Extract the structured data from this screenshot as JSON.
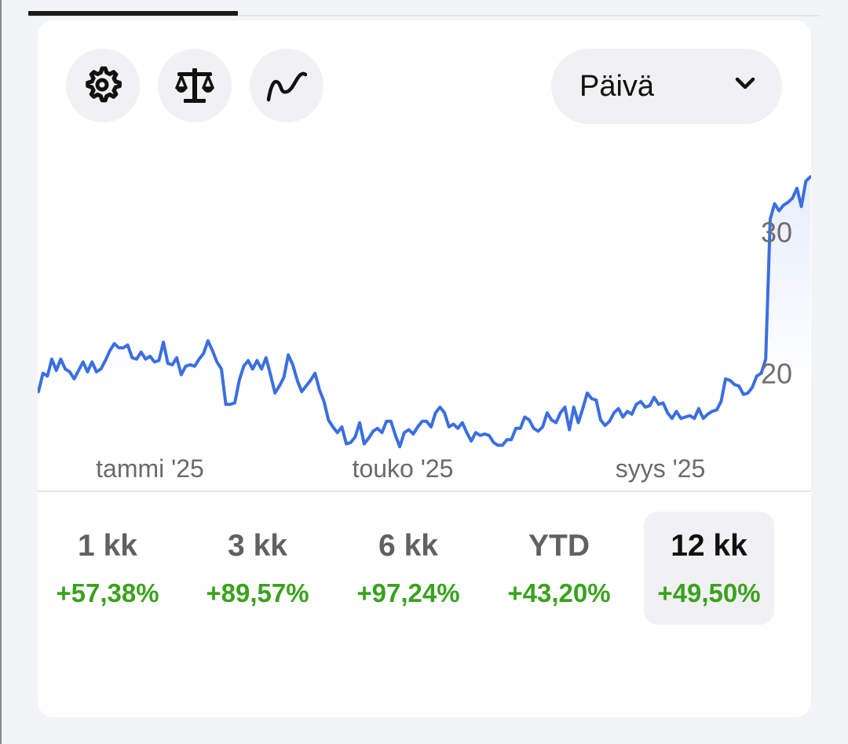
{
  "toolbar": {
    "buttons": [
      {
        "icon": "settings-gear-icon"
      },
      {
        "icon": "scale-balance-icon"
      },
      {
        "icon": "trend-line-icon"
      }
    ],
    "range_select": {
      "value": "Päivä",
      "icon": "chevron-down-icon"
    }
  },
  "chart_data": {
    "type": "area",
    "x_tick_labels": [
      "tammi '25",
      "touko '25",
      "syys '25"
    ],
    "y_ticks": [
      20,
      30
    ],
    "ylim": [
      14.7,
      34.7
    ],
    "line_color": "#3b6fe0",
    "fill_color": "#e7edfc",
    "grid": false,
    "series": [
      {
        "values": [
          18.7,
          20.0,
          19.8,
          21.0,
          20.2,
          21.0,
          20.3,
          20.1,
          19.6,
          20.2,
          20.8,
          20.1,
          20.8,
          20.1,
          20.3,
          20.9,
          21.6,
          22.1,
          21.8,
          21.8,
          22.0,
          21.1,
          21.0,
          21.5,
          21.0,
          21.2,
          20.8,
          20.9,
          22.2,
          20.7,
          20.6,
          21.1,
          19.9,
          20.5,
          20.6,
          20.5,
          21.0,
          21.4,
          22.3,
          21.6,
          20.8,
          20.3,
          17.8,
          17.8,
          17.9,
          19.5,
          20.5,
          20.9,
          20.3,
          20.9,
          20.3,
          21.1,
          19.9,
          18.6,
          19.1,
          19.7,
          21.3,
          20.6,
          19.5,
          18.7,
          19.1,
          19.5,
          20.0,
          18.8,
          18.0,
          16.7,
          16.2,
          15.8,
          16.2,
          15.0,
          15.1,
          15.5,
          16.5,
          15.0,
          15.4,
          15.9,
          16.1,
          15.8,
          16.6,
          16.6,
          15.6,
          14.8,
          15.8,
          16.0,
          15.7,
          16.2,
          16.6,
          16.6,
          16.2,
          17.2,
          17.6,
          17.2,
          16.2,
          16.4,
          16.1,
          16.5,
          15.8,
          15.2,
          15.8,
          15.6,
          15.7,
          15.6,
          15.1,
          14.9,
          14.9,
          15.3,
          15.3,
          16.1,
          16.1,
          16.9,
          16.7,
          16.1,
          15.9,
          16.2,
          17.2,
          16.7,
          16.5,
          17.2,
          17.6,
          16.0,
          17.6,
          16.5,
          17.5,
          18.6,
          18.2,
          18.1,
          16.7,
          16.3,
          16.6,
          17.2,
          17.5,
          16.9,
          17.3,
          17.1,
          17.8,
          18.0,
          17.6,
          17.7,
          18.3,
          17.8,
          17.9,
          17.2,
          16.8,
          17.3,
          16.8,
          16.9,
          17.0,
          16.8,
          17.5,
          16.8,
          17.1,
          17.3,
          17.4,
          18.0,
          19.6,
          19.5,
          19.2,
          19.1,
          18.5,
          18.6,
          19.0,
          19.8,
          20.0,
          21.0,
          30.9,
          32.0,
          31.5,
          31.9,
          32.1,
          32.4,
          33.1,
          31.8,
          33.6,
          33.9
        ]
      }
    ]
  },
  "periods": [
    {
      "label": "1 kk",
      "change": "+57,38%",
      "active": false
    },
    {
      "label": "3 kk",
      "change": "+89,57%",
      "active": false
    },
    {
      "label": "6 kk",
      "change": "+97,24%",
      "active": false
    },
    {
      "label": "YTD",
      "change": "+43,20%",
      "active": false
    },
    {
      "label": "12 kk",
      "change": "+49,50%",
      "active": true
    }
  ],
  "colors": {
    "positive": "#3aa21d",
    "active_tab_bg": "#f1f1f3",
    "label_inactive": "#616161",
    "label_active": "#111111"
  }
}
